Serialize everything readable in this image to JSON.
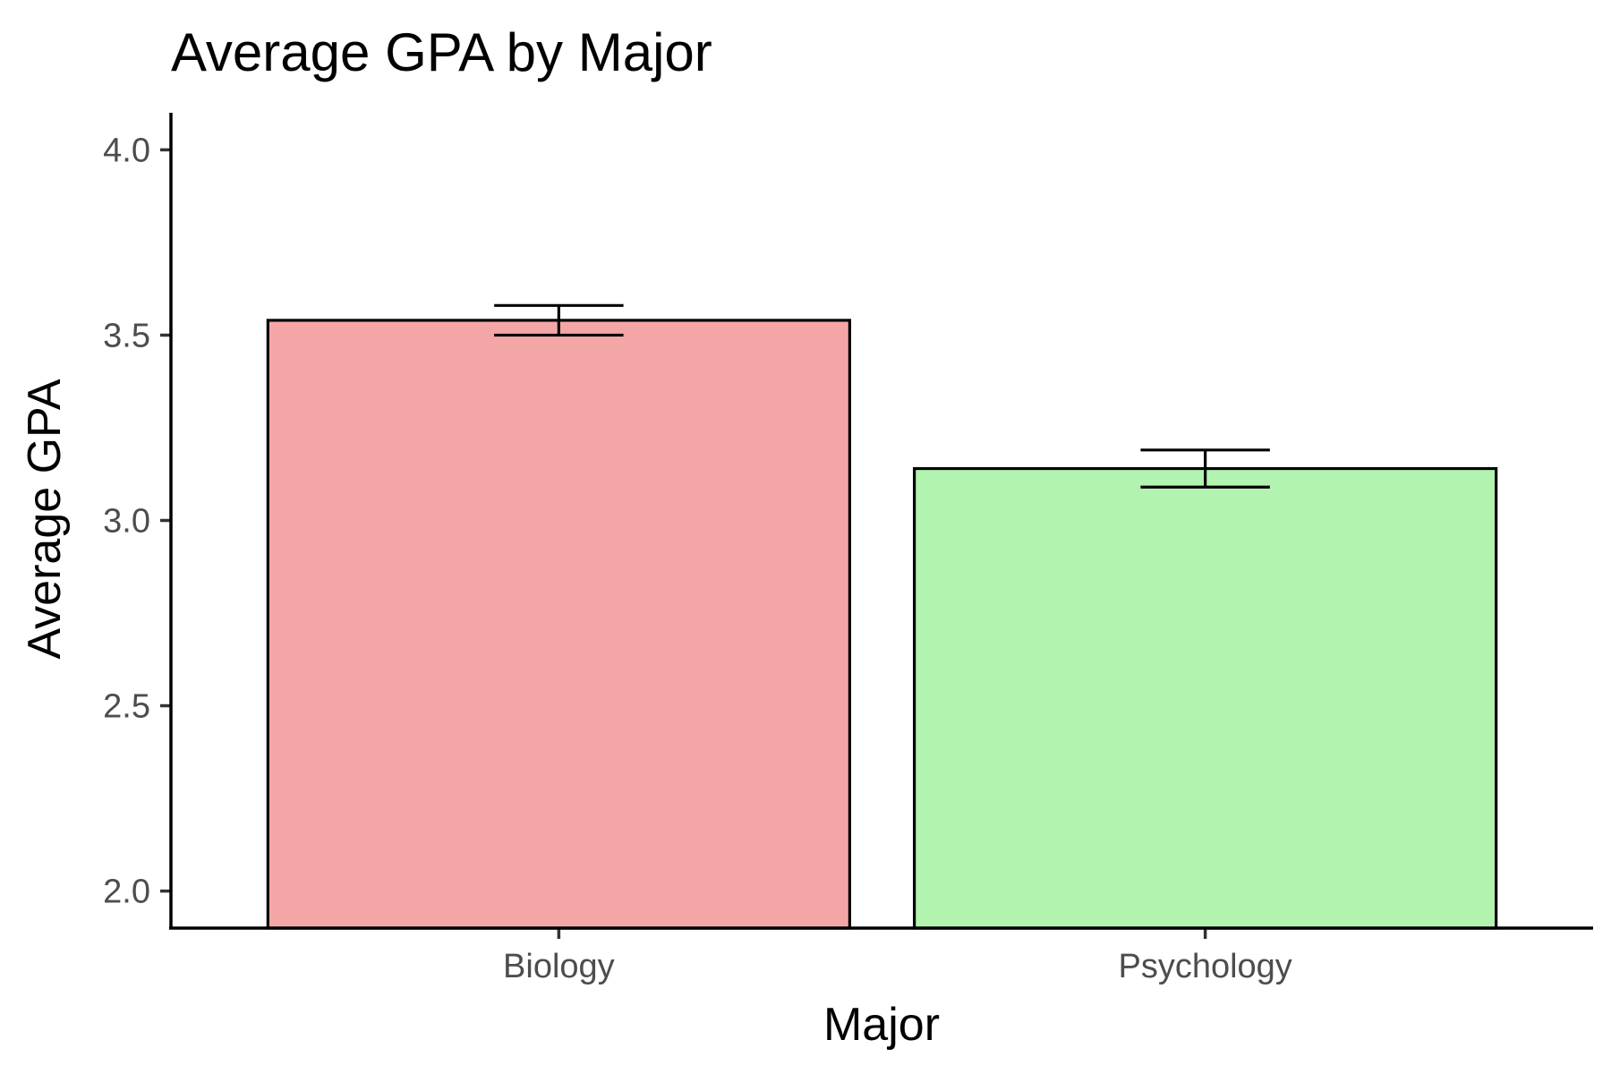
{
  "chart_data": {
    "type": "bar",
    "title": "Average GPA by Major",
    "xlabel": "Major",
    "ylabel": "Average GPA",
    "categories": [
      "Biology",
      "Psychology"
    ],
    "values": [
      3.54,
      3.14
    ],
    "error_bars": [
      {
        "low": 3.5,
        "high": 3.58
      },
      {
        "low": 3.09,
        "high": 3.19
      }
    ],
    "colors": [
      "#f4a6a6",
      "#b3f3b0"
    ],
    "ylim": [
      1.9,
      4.1
    ],
    "yticks": [
      "2.0",
      "2.5",
      "3.0",
      "3.5",
      "4.0"
    ],
    "grid": false,
    "legend": "none"
  }
}
